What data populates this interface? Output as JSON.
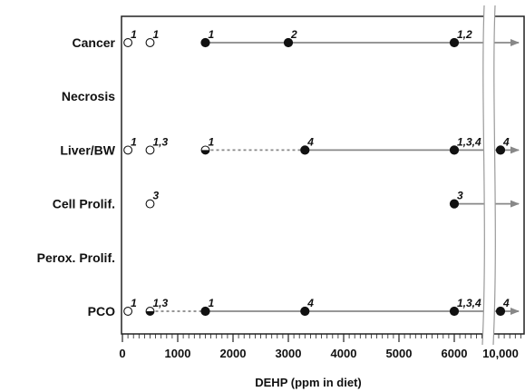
{
  "chart_data": {
    "type": "scatter",
    "x_axis": {
      "label": "DEHP (ppm in diet)",
      "ticks": [
        {
          "value": 0,
          "label": "0"
        },
        {
          "value": 1000,
          "label": "1000"
        },
        {
          "value": 2000,
          "label": "2000"
        },
        {
          "value": 3000,
          "label": "3000"
        },
        {
          "value": 4000,
          "label": "4000"
        },
        {
          "value": 5000,
          "label": "5000"
        },
        {
          "value": 6000,
          "label": "6000"
        },
        {
          "value": 10000,
          "label": "10,000"
        }
      ],
      "minor_tick_step": 100,
      "axis_break_after": 6500
    },
    "rows": [
      {
        "name": "Cancer",
        "points": [
          {
            "x": 100,
            "style": "open",
            "note": "1"
          },
          {
            "x": 500,
            "style": "open",
            "note": "1"
          },
          {
            "x": 1500,
            "style": "filled",
            "note": "1"
          },
          {
            "x": 3000,
            "style": "filled",
            "note": "2"
          },
          {
            "x": 6000,
            "style": "filled",
            "note": "1,2"
          }
        ],
        "segments": [
          {
            "from": 1500,
            "to": 6000,
            "style": "solid"
          }
        ],
        "arrow_from": 6000
      },
      {
        "name": "Necrosis",
        "points": [],
        "segments": [],
        "arrow_from": null
      },
      {
        "name": "Liver/BW",
        "points": [
          {
            "x": 100,
            "style": "open",
            "note": "1"
          },
          {
            "x": 500,
            "style": "open",
            "note": "1,3"
          },
          {
            "x": 1500,
            "style": "half",
            "note": "1"
          },
          {
            "x": 3300,
            "style": "filled",
            "note": "4"
          },
          {
            "x": 6000,
            "style": "filled",
            "note": "1,3,4"
          },
          {
            "x": 10000,
            "style": "filled",
            "note": "4"
          }
        ],
        "segments": [
          {
            "from": 1500,
            "to": 3300,
            "style": "dashed"
          },
          {
            "from": 3300,
            "to": 10000,
            "style": "solid"
          }
        ],
        "arrow_from": 10000
      },
      {
        "name": "Cell Prolif.",
        "points": [
          {
            "x": 500,
            "style": "open",
            "note": "3"
          },
          {
            "x": 6000,
            "style": "filled",
            "note": "3"
          }
        ],
        "segments": [],
        "arrow_from": 6000
      },
      {
        "name": "Perox. Prolif.",
        "points": [],
        "segments": [],
        "arrow_from": null
      },
      {
        "name": "PCO",
        "points": [
          {
            "x": 100,
            "style": "open",
            "note": "1"
          },
          {
            "x": 500,
            "style": "half",
            "note": "1,3"
          },
          {
            "x": 1500,
            "style": "filled",
            "note": "1"
          },
          {
            "x": 3300,
            "style": "filled",
            "note": "4"
          },
          {
            "x": 6000,
            "style": "filled",
            "note": "1,3,4"
          },
          {
            "x": 10000,
            "style": "filled",
            "note": "4"
          }
        ],
        "segments": [
          {
            "from": 500,
            "to": 1500,
            "style": "dashed"
          },
          {
            "from": 1500,
            "to": 10000,
            "style": "solid"
          }
        ],
        "arrow_from": 10000
      }
    ],
    "legend": "none",
    "grid": false
  }
}
